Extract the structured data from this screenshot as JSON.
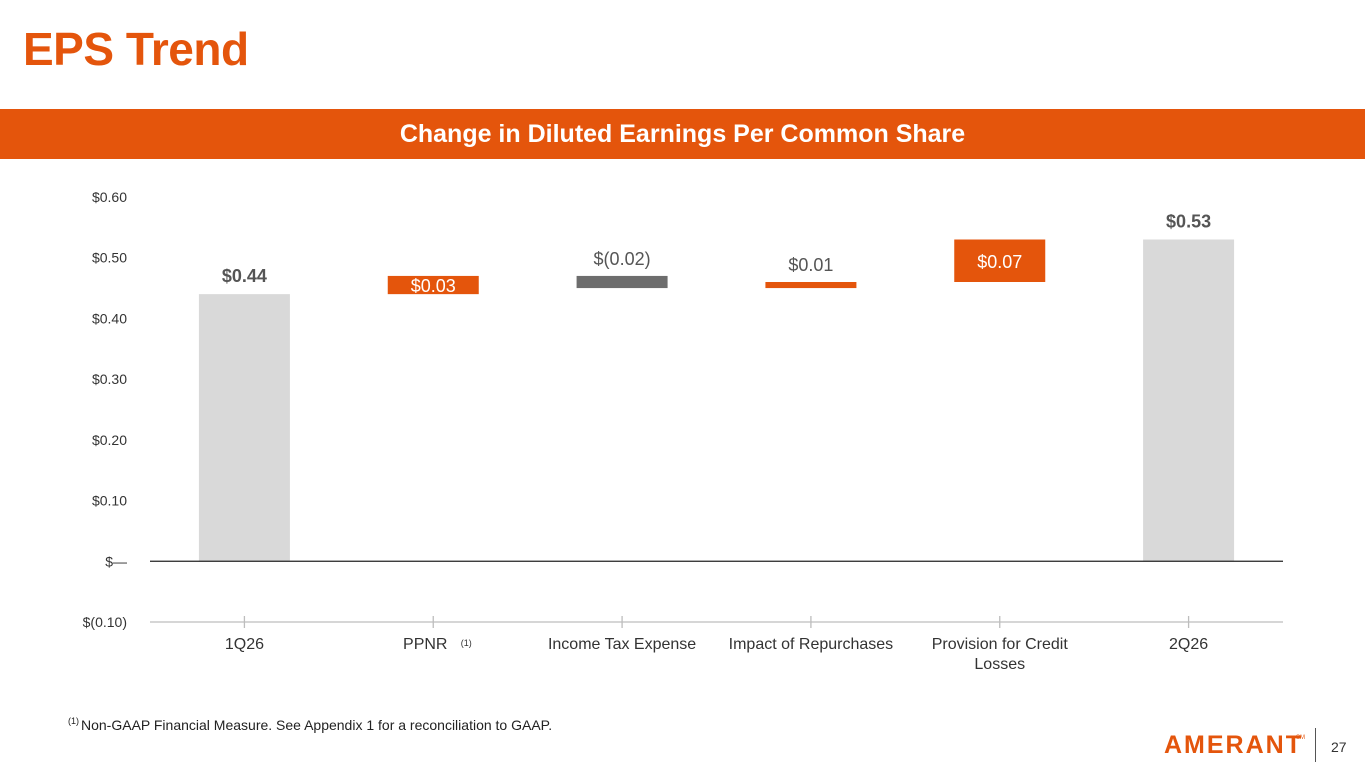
{
  "header": {
    "title": "EPS Trend"
  },
  "banner": {
    "title": "Change in Diluted Earnings Per Common Share"
  },
  "colors": {
    "accent": "#e4550c",
    "start_end_bar": "#d9d9d9",
    "increase_bar": "#e4550c",
    "decrease_bar": "#6d6d6d"
  },
  "chart_data": {
    "type": "bar",
    "subtype": "waterfall",
    "title": "Change in Diluted Earnings Per Common Share",
    "categories": [
      "1Q26",
      "PPNR",
      "Income Tax Expense",
      "Impact of Repurchases",
      "Provision for Credit Losses",
      "2Q26"
    ],
    "category_lines": [
      [
        "1Q26"
      ],
      [
        "PPNR"
      ],
      [
        "Income Tax Expense"
      ],
      [
        "Impact of Repurchases"
      ],
      [
        "Provision for Credit",
        "Losses"
      ],
      [
        "2Q26"
      ]
    ],
    "category_notes": [
      "",
      "(1)",
      "",
      "",
      "",
      ""
    ],
    "values": [
      0.44,
      0.03,
      -0.02,
      0.01,
      0.07,
      0.53
    ],
    "bar_kinds": [
      "total",
      "increase",
      "decrease",
      "increase",
      "increase",
      "total"
    ],
    "data_labels": [
      "$0.44",
      "$0.03",
      "$(0.02)",
      "$0.01",
      "$0.07",
      "$0.53"
    ],
    "y_ticks": [
      0.6,
      0.5,
      0.4,
      0.3,
      0.2,
      0.1,
      0,
      -0.1
    ],
    "y_tick_labels": [
      "$0.60",
      "$0.50",
      "$0.40",
      "$0.30",
      "$0.20",
      "$0.10",
      "$—",
      "$(0.10)"
    ],
    "ylim": [
      -0.1,
      0.6
    ],
    "xlabel": "",
    "ylabel": "",
    "legend": "none",
    "grid": false
  },
  "footnote": {
    "marker": "(1)",
    "text": "Non-GAAP Financial Measure. See Appendix 1 for a reconciliation to GAAP."
  },
  "logo": {
    "text": "AMERANT",
    "mark": "SM"
  },
  "page": {
    "number": "27"
  }
}
